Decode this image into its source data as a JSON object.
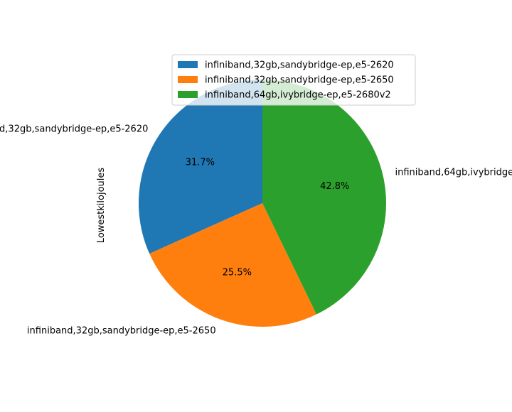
{
  "chart_data": {
    "type": "pie",
    "ylabel": "Lowestkilojoules",
    "title": "",
    "start_angle_deg": 90,
    "direction": "counterclockwise",
    "legend_placement": "top-right",
    "slices": [
      {
        "label": "infiniband,32gb,sandybridge-ep,e5-2620",
        "percent": 31.7,
        "pct_label": "31.7%",
        "color": "#1f77b4"
      },
      {
        "label": "infiniband,32gb,sandybridge-ep,e5-2650",
        "percent": 25.5,
        "pct_label": "25.5%",
        "color": "#ff7f0e"
      },
      {
        "label": "infiniband,64gb,ivybridge-ep,e5-2680v2",
        "percent": 42.8,
        "pct_label": "42.8%",
        "color": "#2ca02c"
      }
    ]
  }
}
